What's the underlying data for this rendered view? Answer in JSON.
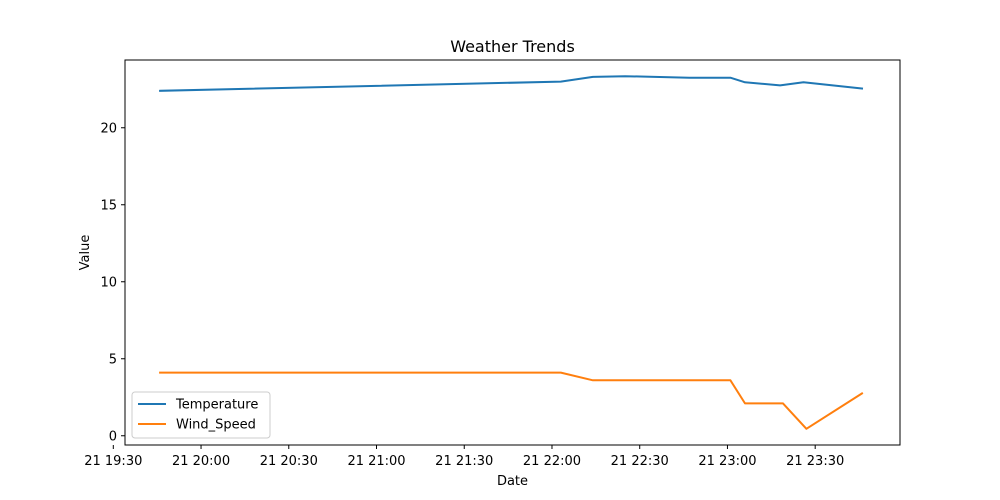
{
  "chart_data": {
    "type": "line",
    "title": "Weather Trends",
    "xlabel": "Date",
    "ylabel": "Value",
    "xlim": [
      "2024-01-21 19:34",
      "2024-01-21 23:59"
    ],
    "ylim": [
      -0.6,
      24.4
    ],
    "x_ticks": [
      {
        "t": "2024-01-21 19:30",
        "label": "21 19:30"
      },
      {
        "t": "2024-01-21 20:00",
        "label": "21 20:00"
      },
      {
        "t": "2024-01-21 20:30",
        "label": "21 20:30"
      },
      {
        "t": "2024-01-21 21:00",
        "label": "21 21:00"
      },
      {
        "t": "2024-01-21 21:30",
        "label": "21 21:30"
      },
      {
        "t": "2024-01-21 22:00",
        "label": "21 22:00"
      },
      {
        "t": "2024-01-21 22:30",
        "label": "21 22:30"
      },
      {
        "t": "2024-01-21 23:00",
        "label": "21 23:00"
      },
      {
        "t": "2024-01-21 23:30",
        "label": "21 23:30"
      }
    ],
    "y_ticks": [
      0,
      5,
      10,
      15,
      20
    ],
    "legend": "lower-left",
    "grid": false,
    "series": [
      {
        "name": "Temperature",
        "color": "#1f77b4",
        "points": [
          {
            "x": "2024-01-21 19:46",
            "y": 22.4
          },
          {
            "x": "2024-01-21 22:03",
            "y": 23.0
          },
          {
            "x": "2024-01-21 22:14",
            "y": 23.3
          },
          {
            "x": "2024-01-21 22:25",
            "y": 23.35
          },
          {
            "x": "2024-01-21 22:47",
            "y": 23.25
          },
          {
            "x": "2024-01-21 23:01",
            "y": 23.25
          },
          {
            "x": "2024-01-21 23:06",
            "y": 22.95
          },
          {
            "x": "2024-01-21 23:18",
            "y": 22.75
          },
          {
            "x": "2024-01-21 23:26",
            "y": 22.95
          },
          {
            "x": "2024-01-21 23:46",
            "y": 22.55
          }
        ]
      },
      {
        "name": "Wind_Speed",
        "color": "#ff7f0e",
        "points": [
          {
            "x": "2024-01-21 19:46",
            "y": 4.1
          },
          {
            "x": "2024-01-21 22:03",
            "y": 4.1
          },
          {
            "x": "2024-01-21 22:14",
            "y": 3.6
          },
          {
            "x": "2024-01-21 23:01",
            "y": 3.6
          },
          {
            "x": "2024-01-21 23:06",
            "y": 2.1
          },
          {
            "x": "2024-01-21 23:19",
            "y": 2.1
          },
          {
            "x": "2024-01-21 23:27",
            "y": 0.45
          },
          {
            "x": "2024-01-21 23:46",
            "y": 2.75
          }
        ]
      }
    ]
  }
}
